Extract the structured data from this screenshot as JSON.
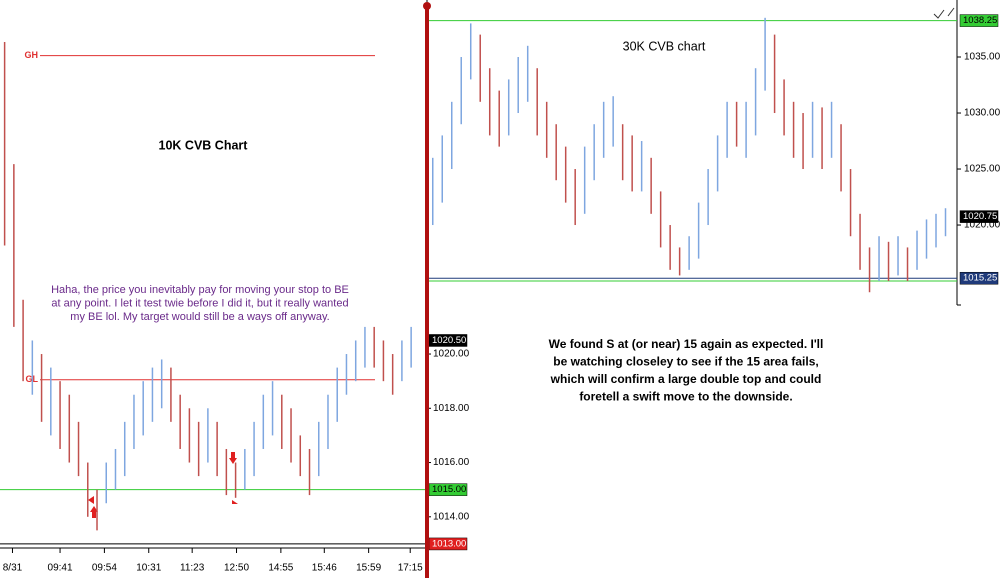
{
  "chart_data": [
    {
      "type": "range_bars",
      "title": "10K CVB Chart",
      "annotation": [
        "Haha, the price you inevitably pay for moving your stop to BE",
        "at any point. I let it test twie before I did it, but it really wanted",
        "my BE lol. My target would still be a ways off anyway."
      ],
      "xlim": [
        -0.5,
        45.5
      ],
      "xticks": [
        {
          "value": 0.85,
          "label": "8/31"
        },
        {
          "value": 6,
          "label": "09:41"
        },
        {
          "value": 10.8,
          "label": "09:54"
        },
        {
          "value": 15.6,
          "label": "10:31"
        },
        {
          "value": 20.3,
          "label": "11:23"
        },
        {
          "value": 25.1,
          "label": "12:50"
        },
        {
          "value": 29.9,
          "label": "14:55"
        },
        {
          "value": 34.6,
          "label": "15:46"
        },
        {
          "value": 39.4,
          "label": "15:59"
        },
        {
          "value": 43.9,
          "label": "17:15"
        }
      ],
      "ylim": [
        1012.85,
        1033.05
      ],
      "yticks": [
        {
          "value": 1014,
          "label": "1014.00"
        },
        {
          "value": 1016,
          "label": "1016.00"
        },
        {
          "value": 1018,
          "label": "1018.00"
        },
        {
          "value": 1020,
          "label": "1020.00"
        }
      ],
      "high": [
        1031.5,
        1027,
        1022,
        1020.5,
        1020,
        1019.5,
        1019,
        1018.5,
        1017.5,
        1016,
        1015,
        1016,
        1016.5,
        1017.5,
        1018.5,
        1019,
        1019.5,
        1019.8,
        1019.5,
        1018.5,
        1018,
        1017.5,
        1018,
        1017.5,
        1016.5,
        1016,
        1016.5,
        1017.5,
        1018.5,
        1019,
        1018.5,
        1018,
        1017,
        1016.5,
        1017.5,
        1018.5,
        1019.5,
        1020,
        1020.5,
        1021,
        1021,
        1020.5,
        1020,
        1020.5,
        1021
      ],
      "low": [
        1024,
        1021,
        1019,
        1018.5,
        1017.5,
        1017,
        1016.5,
        1016,
        1015.5,
        1014,
        1013.5,
        1014.5,
        1015,
        1015.5,
        1016.5,
        1017,
        1017.5,
        1018,
        1017.5,
        1016.5,
        1016,
        1015.5,
        1016,
        1015.5,
        1014.8,
        1014.7,
        1015,
        1015.5,
        1016.5,
        1017,
        1016.5,
        1016,
        1015.5,
        1014.8,
        1015.5,
        1016.5,
        1017.5,
        1018.5,
        1019,
        1019.5,
        1019.5,
        1019,
        1018.5,
        1019,
        1019.5
      ],
      "colors": [
        "#c0504d",
        "#c0504d",
        "#c0504d",
        "#7ea6e0",
        "#c0504d",
        "#7ea6e0",
        "#c0504d",
        "#c0504d",
        "#c0504d",
        "#c0504d",
        "#c0504d",
        "#7ea6e0",
        "#7ea6e0",
        "#7ea6e0",
        "#7ea6e0",
        "#7ea6e0",
        "#7ea6e0",
        "#7ea6e0",
        "#c0504d",
        "#c0504d",
        "#c0504d",
        "#c0504d",
        "#7ea6e0",
        "#c0504d",
        "#c0504d",
        "#c0504d",
        "#7ea6e0",
        "#7ea6e0",
        "#7ea6e0",
        "#7ea6e0",
        "#c0504d",
        "#c0504d",
        "#c0504d",
        "#c0504d",
        "#7ea6e0",
        "#7ea6e0",
        "#7ea6e0",
        "#7ea6e0",
        "#7ea6e0",
        "#7ea6e0",
        "#c0504d",
        "#c0504d",
        "#c0504d",
        "#7ea6e0",
        "#7ea6e0"
      ],
      "levels": [
        {
          "label": "GH",
          "value": 1031,
          "color": "#e03030"
        },
        {
          "label": "GL",
          "value": 1019.05,
          "color": "#e03030"
        },
        {
          "value": 1015,
          "color": "#33cc33"
        },
        {
          "value": 1013,
          "color": "#000000"
        }
      ],
      "price_tags": [
        {
          "value": 1020.5,
          "label": "1020.50",
          "color": "#000000"
        },
        {
          "value": 1015,
          "label": "1015.00",
          "color": "#33cc33"
        },
        {
          "value": 1013,
          "label": "1013.00",
          "color": "#e02020"
        }
      ]
    },
    {
      "type": "range_bars",
      "title": "30K CVB chart",
      "annotation": [
        "We found S at (or near) 15 again as expected. I'll",
        "be watching closeley to see if the 15 area fails,",
        "which will confirm a large double top and could",
        "foretell a swift move to the downside."
      ],
      "xlim": [
        -0.5,
        55
      ],
      "ylim": [
        1012.86,
        1040.09
      ],
      "yticks": [
        {
          "value": 1020,
          "label": "1020.00"
        },
        {
          "value": 1025,
          "label": "1025.00"
        },
        {
          "value": 1030,
          "label": "1030.00"
        },
        {
          "value": 1035,
          "label": "1035.00"
        }
      ],
      "high": [
        1026,
        1028,
        1031,
        1035,
        1038,
        1037,
        1034,
        1032,
        1033,
        1035,
        1036,
        1034,
        1031,
        1029,
        1027,
        1025,
        1027,
        1029,
        1031,
        1031.5,
        1029,
        1028,
        1027.5,
        1026,
        1023,
        1020,
        1018,
        1019,
        1022,
        1025,
        1028,
        1031,
        1031,
        1031,
        1034,
        1038.5,
        1037,
        1033,
        1031,
        1030,
        1031,
        1030.5,
        1031,
        1029,
        1025,
        1021,
        1018,
        1019,
        1018.5,
        1019,
        1018,
        1019.5,
        1020.5,
        1021,
        1021.5
      ],
      "low": [
        1020,
        1022,
        1025,
        1029,
        1033,
        1031,
        1028,
        1027,
        1028,
        1030,
        1031,
        1028,
        1026,
        1024,
        1022,
        1020,
        1021,
        1024,
        1026,
        1027,
        1024,
        1023,
        1023,
        1021,
        1018,
        1016,
        1015.5,
        1016,
        1017,
        1020,
        1023,
        1026,
        1027,
        1026,
        1028,
        1032,
        1030,
        1028,
        1026,
        1025,
        1026,
        1025,
        1026,
        1023,
        1019,
        1016,
        1014,
        1015,
        1015,
        1015.5,
        1015,
        1016,
        1017,
        1018,
        1019
      ],
      "colors": [
        "#7ea6e0",
        "#7ea6e0",
        "#7ea6e0",
        "#7ea6e0",
        "#7ea6e0",
        "#c0504d",
        "#c0504d",
        "#c0504d",
        "#7ea6e0",
        "#7ea6e0",
        "#7ea6e0",
        "#c0504d",
        "#c0504d",
        "#c0504d",
        "#c0504d",
        "#c0504d",
        "#7ea6e0",
        "#7ea6e0",
        "#7ea6e0",
        "#7ea6e0",
        "#c0504d",
        "#c0504d",
        "#7ea6e0",
        "#c0504d",
        "#c0504d",
        "#c0504d",
        "#c0504d",
        "#7ea6e0",
        "#7ea6e0",
        "#7ea6e0",
        "#7ea6e0",
        "#7ea6e0",
        "#c0504d",
        "#7ea6e0",
        "#7ea6e0",
        "#7ea6e0",
        "#c0504d",
        "#c0504d",
        "#c0504d",
        "#c0504d",
        "#7ea6e0",
        "#c0504d",
        "#7ea6e0",
        "#c0504d",
        "#c0504d",
        "#c0504d",
        "#c0504d",
        "#7ea6e0",
        "#c0504d",
        "#7ea6e0",
        "#c0504d",
        "#7ea6e0",
        "#7ea6e0",
        "#7ea6e0",
        "#7ea6e0"
      ],
      "levels": [
        {
          "value": 1038.25,
          "color": "#33cc33"
        },
        {
          "value": 1015.25,
          "color": "#1f3a7a"
        },
        {
          "value": 1015,
          "color": "#33cc33"
        }
      ],
      "price_tags": [
        {
          "value": 1038.25,
          "label": "1038.25",
          "color": "#33cc33"
        },
        {
          "value": 1020.75,
          "label": "1020.75",
          "color": "#000000"
        },
        {
          "value": 1015.25,
          "label": "1015.25",
          "color": "#1f3a7a"
        }
      ]
    }
  ]
}
